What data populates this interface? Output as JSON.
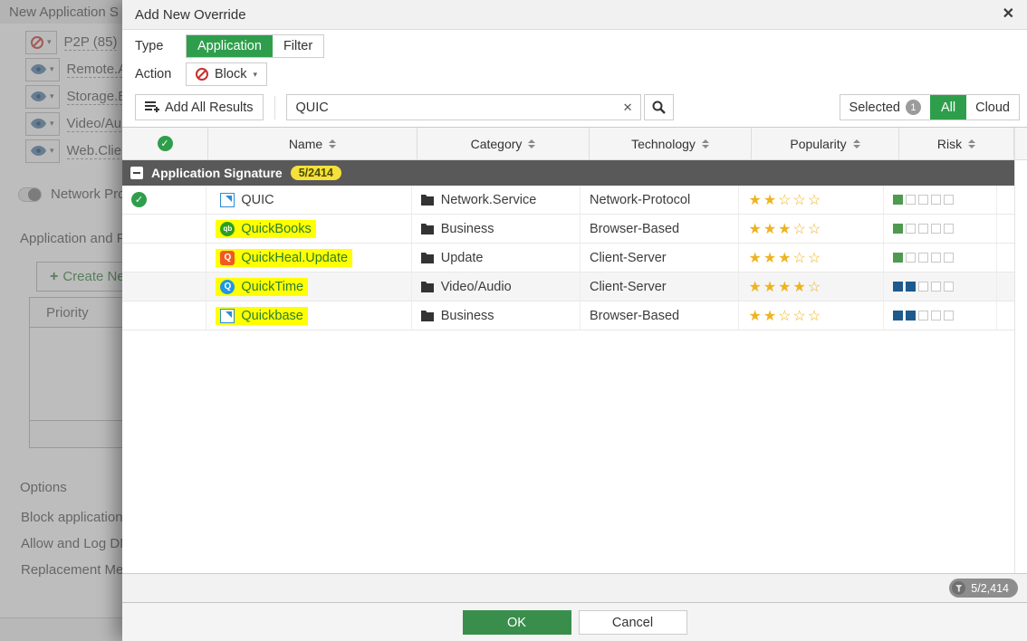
{
  "colors": {
    "accent_green": "#2f9e4c",
    "ok_green": "#3a8e4c",
    "section_gray": "#595959",
    "badge_yellow": "#f5e13a",
    "highlight_yellow": "#ffff00",
    "star_gold": "#efb31f",
    "risk_low": "#4e9a51",
    "risk_elevated": "#1e5a8e",
    "block_red": "#c9302c",
    "name_green": "#2b7d32"
  },
  "backdrop": {
    "page_title": "New Application S",
    "categories": [
      {
        "label": "P2P (85)",
        "icon": "block"
      },
      {
        "label": "Remote.A",
        "icon": "eye"
      },
      {
        "label": "Storage.B",
        "icon": "eye"
      },
      {
        "label": "Video/Au",
        "icon": "eye"
      },
      {
        "label": "Web.Clien",
        "icon": "eye"
      }
    ],
    "toggle_label": "Network Pro",
    "section_label": "Application and F",
    "create_button_label": "Create Ne",
    "priority_header": "Priority",
    "options_label": "Options",
    "option_rows": [
      "Block application",
      "Allow and Log DN",
      "Replacement Me"
    ]
  },
  "dialog": {
    "title": "Add New Override",
    "close_icon": "✕",
    "type": {
      "label": "Type",
      "options": [
        "Application",
        "Filter"
      ],
      "selected": "Application"
    },
    "action": {
      "label": "Action",
      "value": "Block",
      "caret": "▾"
    },
    "toolbar": {
      "add_all_label": "Add All Results",
      "search_value": "QUIC",
      "clear_icon": "✕",
      "view_tabs": {
        "selected_label": "Selected",
        "selected_count": "1",
        "all_label": "All",
        "cloud_label": "Cloud",
        "active": "All"
      }
    },
    "table": {
      "headers": [
        "Name",
        "Category",
        "Technology",
        "Popularity",
        "Risk"
      ],
      "section": {
        "label": "Application Signature",
        "badge": "5/2414"
      },
      "rows": [
        {
          "name": "QUIC",
          "icon": "generic",
          "icon_text": "",
          "category": "Network.Service",
          "technology": "Network-Protocol",
          "popularity": 2,
          "risk": 1,
          "selected": true,
          "highlighted": false,
          "shaded": false
        },
        {
          "name": "QuickBooks",
          "icon": "quickbooks",
          "icon_text": "qb",
          "category": "Business",
          "technology": "Browser-Based",
          "popularity": 3,
          "risk": 1,
          "selected": false,
          "highlighted": true,
          "shaded": false
        },
        {
          "name": "QuickHeal.Update",
          "icon": "quickheal",
          "icon_text": "Q",
          "category": "Update",
          "technology": "Client-Server",
          "popularity": 3,
          "risk": 1,
          "selected": false,
          "highlighted": true,
          "shaded": false
        },
        {
          "name": "QuickTime",
          "icon": "quicktime",
          "icon_text": "Q",
          "category": "Video/Audio",
          "technology": "Client-Server",
          "popularity": 4,
          "risk": 2,
          "selected": false,
          "highlighted": true,
          "shaded": true
        },
        {
          "name": "Quickbase",
          "icon": "generic",
          "icon_text": "",
          "category": "Business",
          "technology": "Browser-Based",
          "popularity": 2,
          "risk": 2,
          "selected": false,
          "highlighted": true,
          "shaded": false
        }
      ]
    },
    "footer": {
      "filter_count": "5/2,414"
    },
    "buttons": {
      "ok": "OK",
      "cancel": "Cancel"
    }
  }
}
